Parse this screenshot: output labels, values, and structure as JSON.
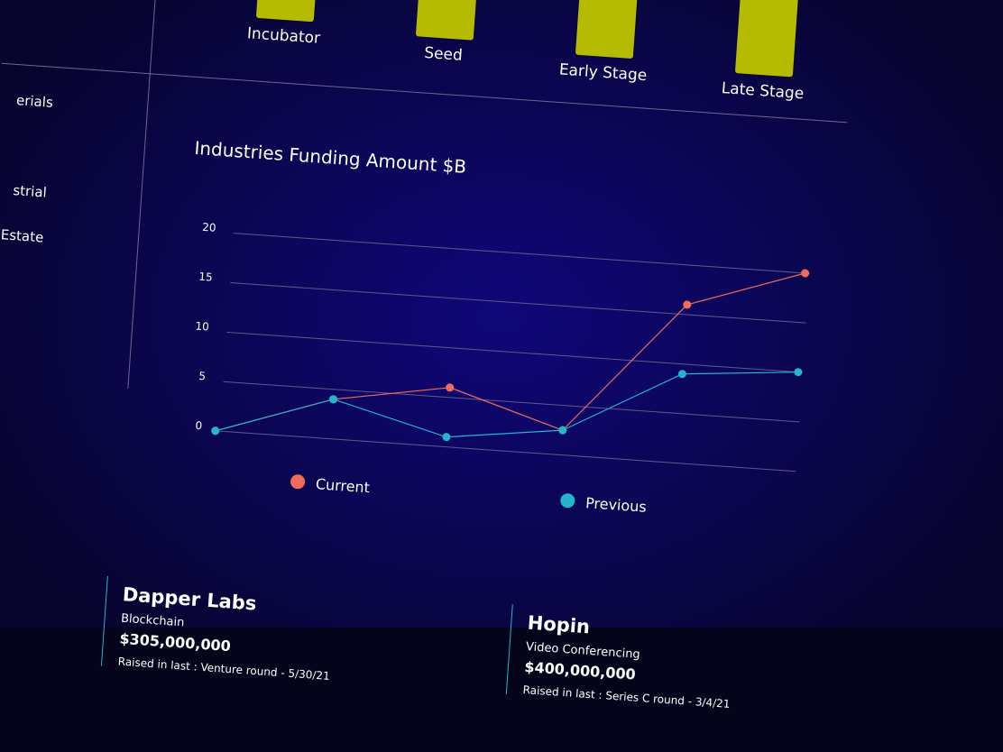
{
  "stage_labels": [
    "Incubator",
    "Seed",
    "Early Stage",
    "Late Stage"
  ],
  "side_labels": [
    "erials",
    "strial",
    "Estate"
  ],
  "chart_data": {
    "type": "line",
    "title": "Industries Funding Amount $B",
    "categories": [
      null,
      null,
      null,
      null,
      null,
      null
    ],
    "series": [
      {
        "name": "Current",
        "color": "#f26b5b",
        "values": [
          0,
          4,
          6,
          2.5,
          16,
          20
        ]
      },
      {
        "name": "Previous",
        "color": "#22b5cc",
        "values": [
          0,
          4,
          1,
          2.5,
          9,
          10
        ]
      }
    ],
    "ylim": [
      0,
      20
    ],
    "yticks": [
      0,
      5,
      10,
      15,
      20
    ],
    "grid": true
  },
  "deals": [
    {
      "name": "Dapper Labs",
      "industry": "Blockchain",
      "amount": "$305,000,000",
      "note": "Raised in last : Venture round - 5/30/21"
    },
    {
      "name": "Hopin",
      "industry": "Video Conferencing",
      "amount": "$400,000,000",
      "note": "Raised in last : Series C round - 3/4/21"
    }
  ]
}
